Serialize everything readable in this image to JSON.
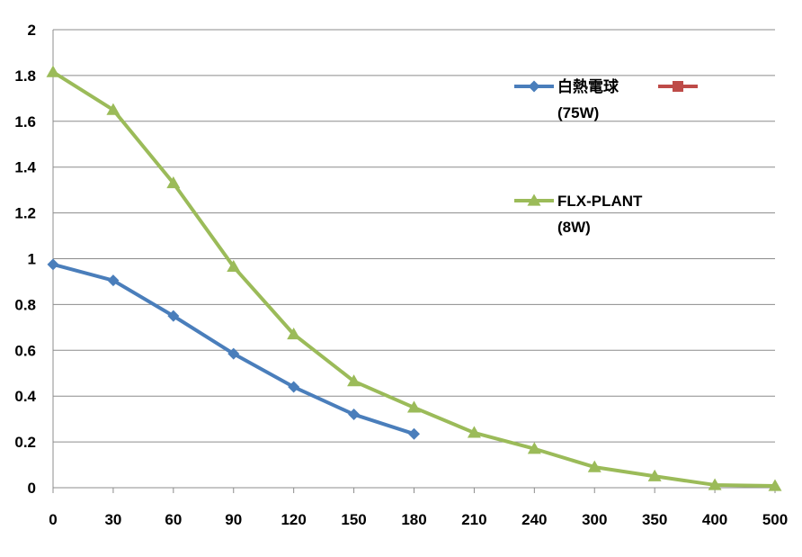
{
  "chart_data": {
    "type": "line",
    "title": "",
    "xlabel": "",
    "ylabel": "",
    "categories": [
      "0",
      "30",
      "60",
      "90",
      "120",
      "150",
      "180",
      "210",
      "240",
      "300",
      "350",
      "400",
      "500"
    ],
    "ylim": [
      0,
      2
    ],
    "yticks": [
      "0",
      "0.2",
      "0.4",
      "0.6",
      "0.8",
      "1",
      "1.2",
      "1.4",
      "1.6",
      "1.8",
      "2"
    ],
    "grid": true,
    "legend_position": "right",
    "series": [
      {
        "name": "白熱電球\n(75W)",
        "color": "#4a7ebb",
        "marker": "diamond",
        "values": [
          0.975,
          0.905,
          0.75,
          0.585,
          0.44,
          0.32,
          0.235,
          null,
          null,
          null,
          null,
          null,
          null
        ]
      },
      {
        "name": "",
        "color": "#be4b48",
        "marker": "square",
        "values": [
          null,
          null,
          null,
          null,
          null,
          null,
          null,
          null,
          null,
          null,
          null,
          null,
          null
        ]
      },
      {
        "name": "FLX-PLANT\n(8W)",
        "color": "#9bbb59",
        "marker": "triangle",
        "values": [
          1.815,
          1.65,
          1.33,
          0.965,
          0.67,
          0.465,
          0.35,
          0.24,
          0.17,
          0.09,
          0.05,
          0.012,
          0.008
        ]
      }
    ]
  }
}
